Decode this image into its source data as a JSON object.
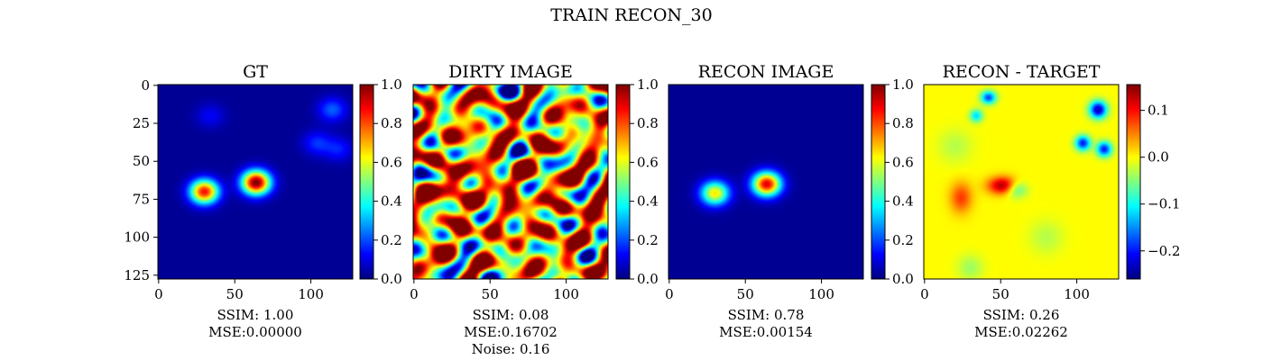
{
  "suptitle": "TRAIN RECON_30",
  "chart_data": [
    {
      "type": "heatmap",
      "title": "GT",
      "colormap": "jet",
      "x_ticks": [
        0,
        50,
        100
      ],
      "y_ticks": [
        0,
        25,
        50,
        75,
        100,
        125
      ],
      "xlim": [
        0,
        127
      ],
      "ylim": [
        127,
        0
      ],
      "colorbar": {
        "range": [
          0.0,
          1.0
        ],
        "ticks": [
          "0.0",
          "0.2",
          "0.4",
          "0.6",
          "0.8",
          "1.0"
        ]
      },
      "caption": [
        "SSIM: 1.00",
        "MSE:0.00000"
      ],
      "sources": [
        {
          "x": 30,
          "y": 70,
          "amp": 0.85
        },
        {
          "x": 64,
          "y": 64,
          "amp": 1.0
        },
        {
          "x": 114,
          "y": 16,
          "amp": 0.2
        },
        {
          "x": 104,
          "y": 38,
          "amp": 0.15
        },
        {
          "x": 118,
          "y": 42,
          "amp": 0.13
        },
        {
          "x": 34,
          "y": 20,
          "amp": 0.1
        }
      ]
    },
    {
      "type": "heatmap",
      "title": "DIRTY IMAGE",
      "colormap": "jet",
      "x_ticks": [
        0,
        50,
        100
      ],
      "xlim": [
        0,
        127
      ],
      "ylim": [
        127,
        0
      ],
      "colorbar": {
        "range": [
          0.0,
          1.0
        ],
        "ticks": [
          "0.0",
          "0.2",
          "0.4",
          "0.6",
          "0.8",
          "1.0"
        ]
      },
      "caption": [
        "SSIM: 0.08",
        "MSE:0.16702",
        "Noise: 0.16"
      ]
    },
    {
      "type": "heatmap",
      "title": "RECON IMAGE",
      "colormap": "jet",
      "x_ticks": [
        0,
        50,
        100
      ],
      "xlim": [
        0,
        127
      ],
      "ylim": [
        127,
        0
      ],
      "colorbar": {
        "range": [
          0.0,
          1.0
        ],
        "ticks": [
          "0.0",
          "0.2",
          "0.4",
          "0.6",
          "0.8",
          "1.0"
        ]
      },
      "caption": [
        "SSIM: 0.78",
        "MSE:0.00154"
      ],
      "sources": [
        {
          "x": 30,
          "y": 71,
          "amp": 0.65
        },
        {
          "x": 64,
          "y": 65,
          "amp": 0.92
        }
      ]
    },
    {
      "type": "heatmap",
      "title": "RECON - TARGET",
      "colormap": "jet",
      "x_ticks": [
        0,
        50,
        100
      ],
      "xlim": [
        0,
        127
      ],
      "ylim": [
        127,
        0
      ],
      "colorbar": {
        "range": [
          -0.26,
          0.155
        ],
        "ticks": [
          "0.1",
          "0.0",
          "−0.1",
          "−0.2"
        ],
        "tick_values": [
          0.1,
          0.0,
          -0.1,
          -0.2
        ]
      },
      "caption": [
        "SSIM: 0.26",
        "MSE:0.02262"
      ]
    }
  ]
}
